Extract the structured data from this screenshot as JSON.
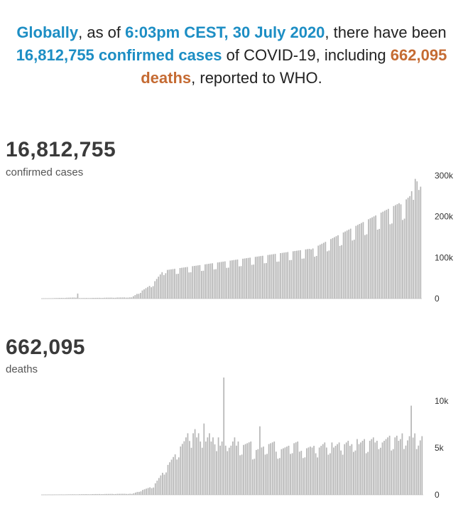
{
  "headline": {
    "p1": "Globally",
    "p2": ", as of ",
    "p3": "6:03pm CEST, 30 July 2020",
    "p4": ", there have been ",
    "p5": "16,812,755 confirmed cases",
    "p6": " of COVID-19, including ",
    "p7": "662,095 deaths",
    "p8": ", reported to WHO."
  },
  "colors": {
    "accent_blue": "#1d8ec4",
    "accent_orange": "#c56b33",
    "bar": "#b7b7b7"
  },
  "chart_data": [
    {
      "type": "bar",
      "big_number": "16,812,755",
      "subtitle": "confirmed cases",
      "ylim": [
        0,
        300000
      ],
      "yticks": [
        0,
        100000,
        200000,
        300000
      ],
      "ytick_labels": [
        "0",
        "100k",
        "200k",
        "300k"
      ],
      "values": []
    },
    {
      "type": "bar",
      "big_number": "662,095",
      "subtitle": "deaths",
      "ylim": [
        0,
        10000
      ],
      "yticks": [
        0,
        5000,
        10000
      ],
      "ytick_labels": [
        "0",
        "5k",
        "10k"
      ],
      "values": []
    }
  ]
}
